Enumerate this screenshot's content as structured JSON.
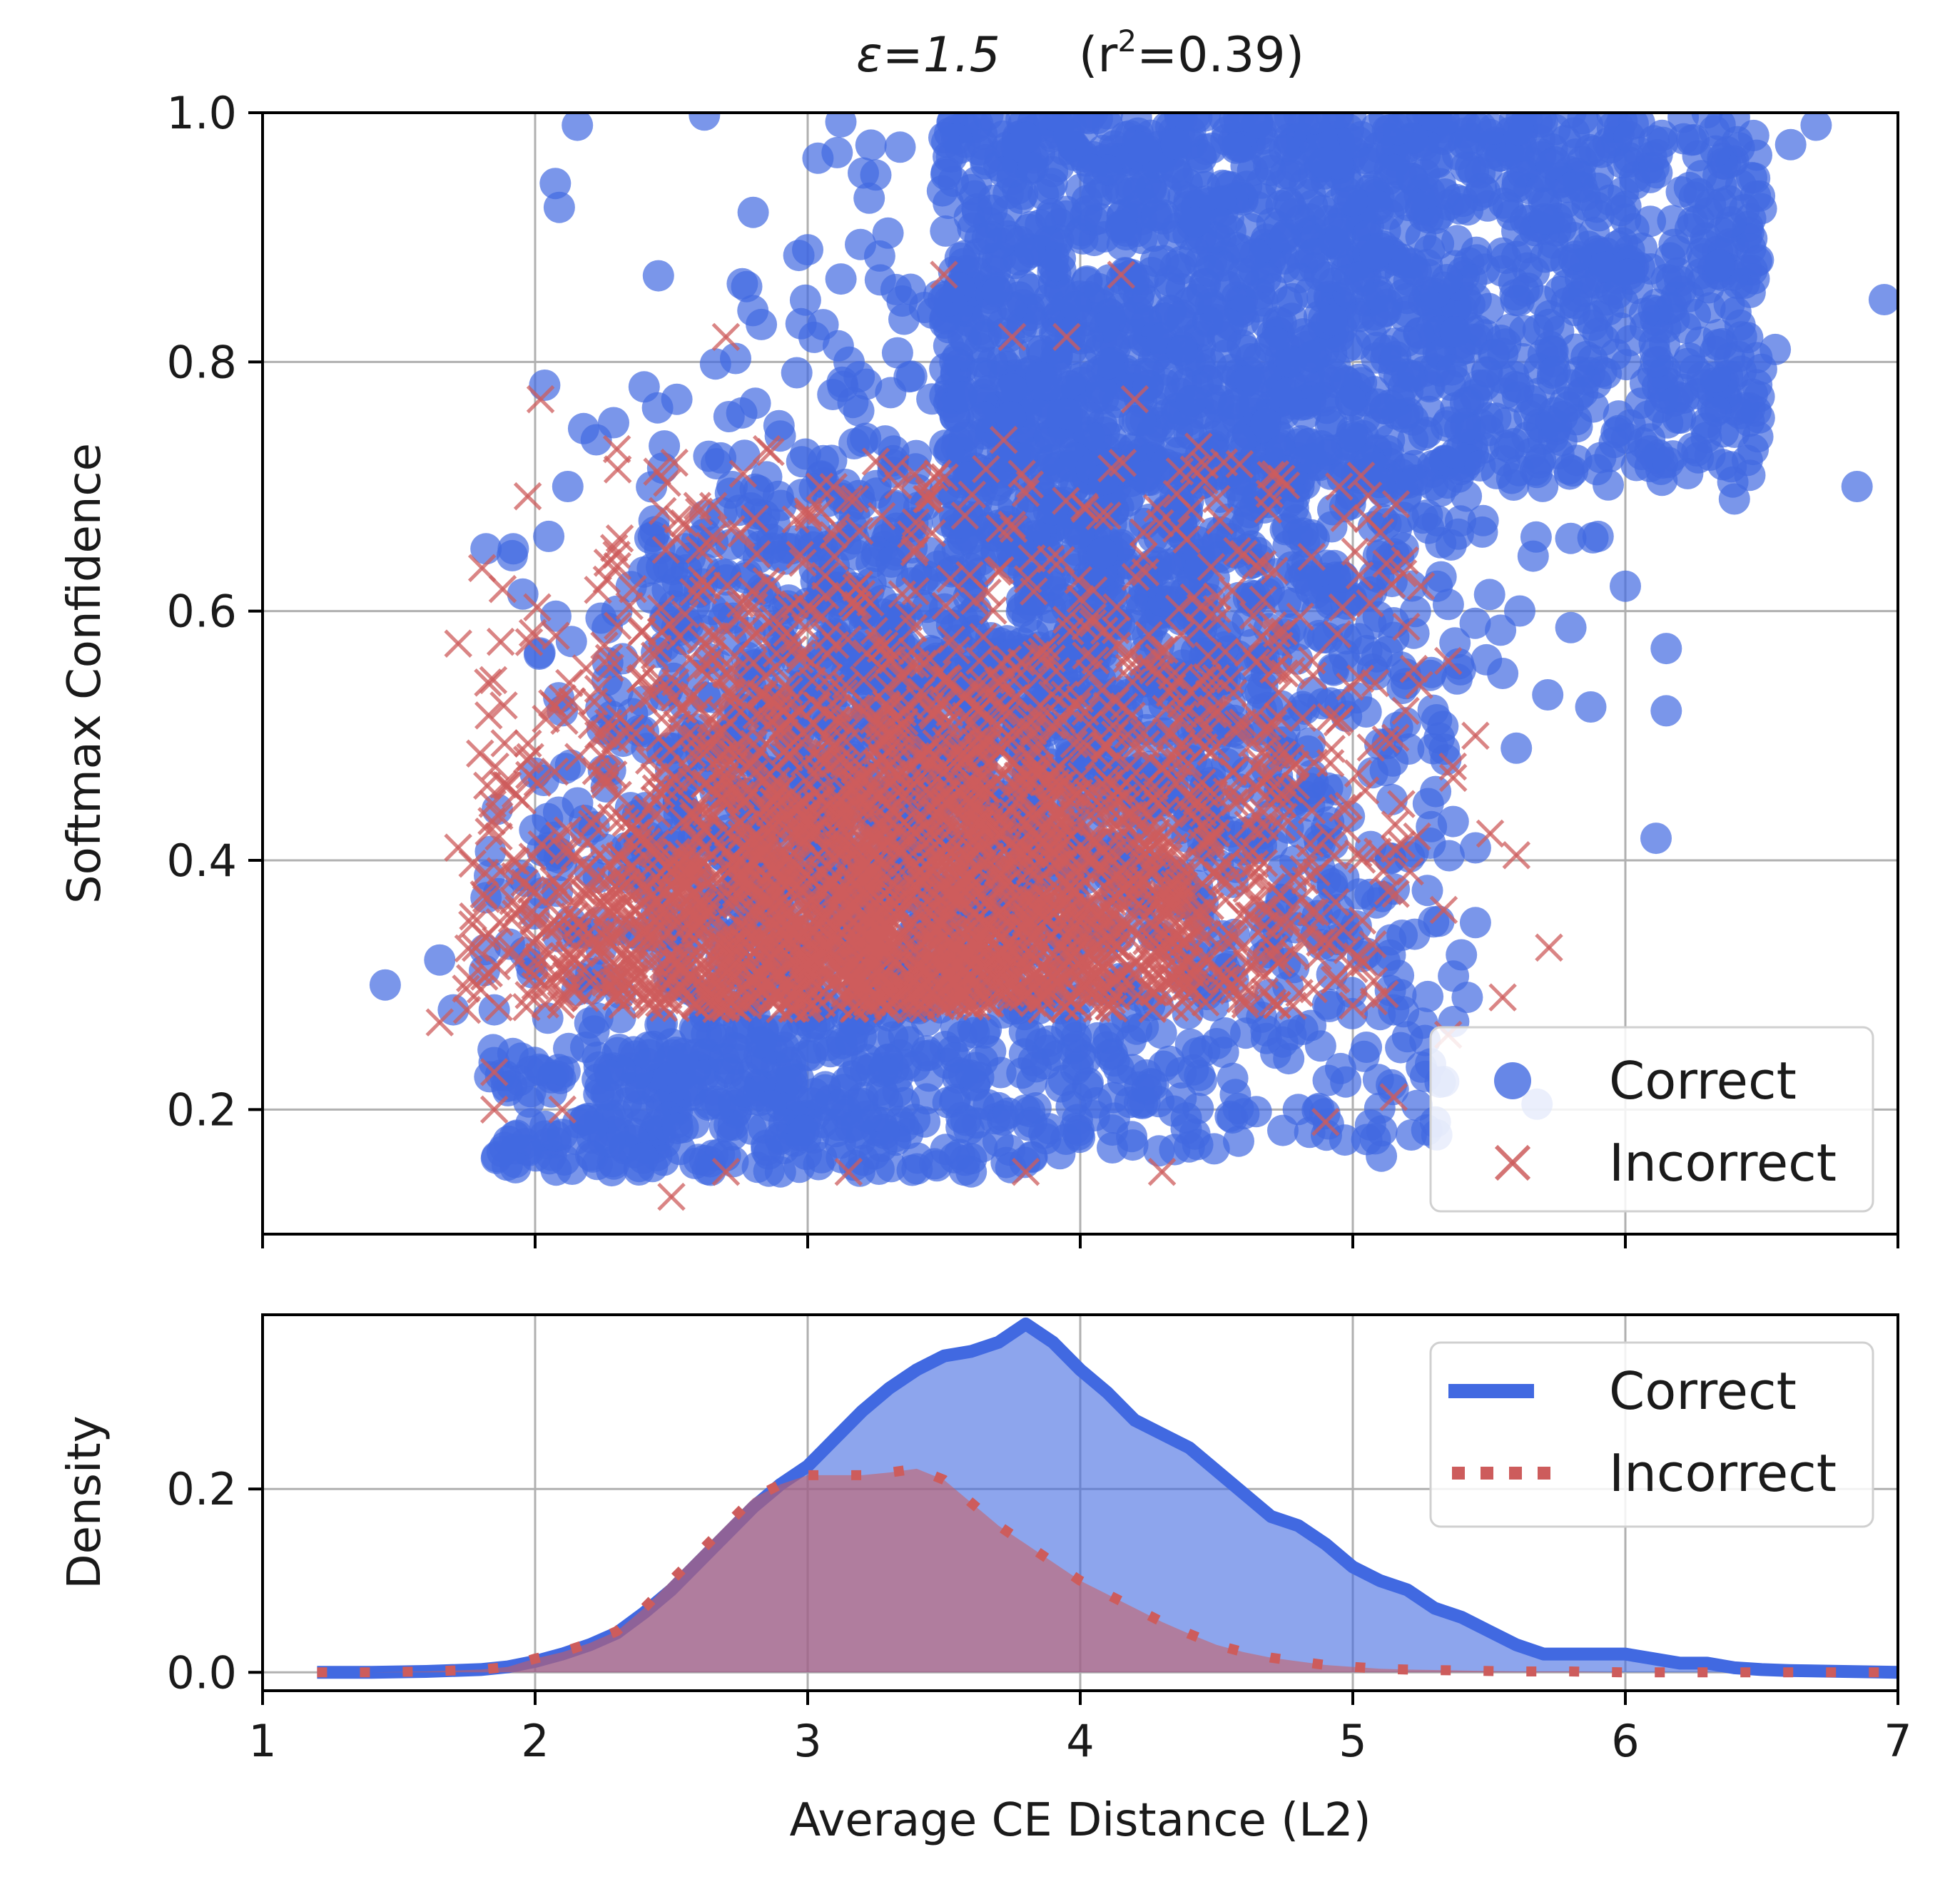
{
  "chart_data": [
    {
      "type": "scatter",
      "title": "ε=1.5    (r²=0.39)",
      "title_parts": {
        "eps": "ε=1.5",
        "r2_open": "(r",
        "r2_sup": "2",
        "r2_value": "=0.39)"
      },
      "xlabel": "",
      "ylabel": "Softmax Confidence",
      "xlim": [
        1,
        7
      ],
      "ylim": [
        0.1,
        1.0
      ],
      "yticks": [
        0.2,
        0.4,
        0.6,
        0.8,
        1.0
      ],
      "ytick_labels": [
        "0.2",
        "0.4",
        "0.6",
        "0.8",
        "1.0"
      ],
      "grid": true,
      "legend": {
        "position": "lower-right",
        "entries": [
          "Correct",
          "Incorrect"
        ]
      },
      "series": [
        {
          "name": "Correct",
          "marker": "circle",
          "color": "#4169e1",
          "sample_points": [
            [
              1.45,
              0.3
            ],
            [
              1.65,
              0.32
            ],
            [
              1.82,
              0.65
            ],
            [
              1.92,
              0.65
            ],
            [
              2.05,
              0.66
            ],
            [
              2.12,
              0.7
            ],
            [
              2.4,
              0.78
            ],
            [
              2.52,
              0.77
            ],
            [
              2.8,
              0.92
            ],
            [
              2.83,
              0.83
            ],
            [
              3.0,
              0.89
            ],
            [
              3.25,
              0.95
            ],
            [
              3.5,
              0.98
            ],
            [
              3.8,
              0.98
            ],
            [
              4.1,
              0.99
            ],
            [
              4.6,
              1.0
            ],
            [
              5.2,
              1.0
            ],
            [
              5.8,
              1.0
            ],
            [
              6.3,
              1.0
            ],
            [
              6.7,
              0.99
            ],
            [
              6.95,
              0.85
            ],
            [
              6.85,
              0.7
            ],
            [
              6.55,
              0.81
            ],
            [
              6.4,
              0.69
            ],
            [
              6.15,
              0.57
            ],
            [
              6.15,
              0.52
            ],
            [
              6.0,
              0.62
            ],
            [
              5.9,
              0.66
            ],
            [
              5.55,
              0.55
            ],
            [
              5.6,
              0.49
            ],
            [
              5.45,
              0.41
            ],
            [
              5.45,
              0.35
            ],
            [
              5.42,
              0.29
            ],
            [
              5.15,
              0.28
            ],
            [
              5.05,
              0.25
            ],
            [
              4.8,
              0.2
            ],
            [
              4.4,
              0.17
            ],
            [
              3.6,
              0.15
            ],
            [
              2.9,
              0.15
            ],
            [
              2.6,
              0.16
            ],
            [
              2.1,
              0.18
            ],
            [
              1.82,
              0.37
            ],
            [
              2.0,
              0.47
            ],
            [
              2.1,
              0.52
            ],
            [
              2.3,
              0.6
            ],
            [
              2.55,
              0.65
            ],
            [
              1.85,
              0.28
            ],
            [
              1.7,
              0.28
            ]
          ]
        },
        {
          "name": "Incorrect",
          "marker": "x",
          "color": "#cd5c5c",
          "sample_points": [
            [
              1.65,
              0.27
            ],
            [
              1.75,
              0.28
            ],
            [
              1.85,
              0.23
            ],
            [
              1.9,
              0.46
            ],
            [
              1.92,
              0.4
            ],
            [
              2.02,
              0.77
            ],
            [
              2.1,
              0.53
            ],
            [
              2.3,
              0.73
            ],
            [
              2.45,
              0.57
            ],
            [
              2.5,
              0.13
            ],
            [
              2.65,
              0.58
            ],
            [
              2.7,
              0.82
            ],
            [
              2.85,
              0.73
            ],
            [
              3.0,
              0.68
            ],
            [
              3.25,
              0.72
            ],
            [
              3.5,
              0.87
            ],
            [
              3.75,
              0.82
            ],
            [
              3.95,
              0.82
            ],
            [
              4.15,
              0.87
            ],
            [
              4.2,
              0.77
            ],
            [
              4.5,
              0.69
            ],
            [
              4.95,
              0.7
            ],
            [
              5.25,
              0.62
            ],
            [
              5.35,
              0.56
            ],
            [
              5.45,
              0.5
            ],
            [
              5.55,
              0.29
            ],
            [
              5.72,
              0.33
            ],
            [
              5.35,
              0.26
            ],
            [
              5.15,
              0.21
            ],
            [
              4.9,
              0.19
            ],
            [
              4.3,
              0.15
            ],
            [
              3.8,
              0.15
            ],
            [
              3.15,
              0.15
            ],
            [
              2.7,
              0.15
            ],
            [
              2.1,
              0.2
            ],
            [
              1.85,
              0.2
            ],
            [
              4.75,
              0.55
            ],
            [
              4.85,
              0.44
            ]
          ]
        }
      ]
    },
    {
      "type": "area",
      "xlabel": "Average CE Distance (L2)",
      "ylabel": "Density",
      "xlim": [
        1,
        7
      ],
      "ylim": [
        -0.02,
        0.39
      ],
      "xticks": [
        1,
        2,
        3,
        4,
        5,
        6,
        7
      ],
      "xtick_labels": [
        "1",
        "2",
        "3",
        "4",
        "5",
        "6",
        "7"
      ],
      "yticks": [
        0.0,
        0.2
      ],
      "ytick_labels": [
        "0.0",
        "0.2"
      ],
      "grid": true,
      "legend": {
        "position": "top-right",
        "entries": [
          "Correct",
          "Incorrect"
        ]
      },
      "series": [
        {
          "name": "Correct",
          "style": "solid",
          "color": "#4169e1",
          "x": [
            1.2,
            1.4,
            1.6,
            1.8,
            1.9,
            2.0,
            2.1,
            2.2,
            2.3,
            2.4,
            2.5,
            2.6,
            2.7,
            2.8,
            2.9,
            3.0,
            3.1,
            3.2,
            3.3,
            3.4,
            3.5,
            3.6,
            3.7,
            3.8,
            3.9,
            4.0,
            4.1,
            4.2,
            4.3,
            4.4,
            4.5,
            4.6,
            4.7,
            4.8,
            4.9,
            5.0,
            5.1,
            5.2,
            5.3,
            5.4,
            5.5,
            5.6,
            5.7,
            5.8,
            5.9,
            6.0,
            6.1,
            6.2,
            6.3,
            6.4,
            6.5,
            6.6,
            6.8,
            7.0
          ],
          "y": [
            0.0,
            0.0,
            0.001,
            0.003,
            0.006,
            0.012,
            0.02,
            0.03,
            0.043,
            0.065,
            0.09,
            0.12,
            0.15,
            0.18,
            0.205,
            0.225,
            0.255,
            0.285,
            0.31,
            0.33,
            0.345,
            0.35,
            0.36,
            0.38,
            0.36,
            0.33,
            0.305,
            0.275,
            0.26,
            0.245,
            0.22,
            0.195,
            0.17,
            0.16,
            0.14,
            0.115,
            0.1,
            0.09,
            0.07,
            0.06,
            0.045,
            0.03,
            0.02,
            0.02,
            0.02,
            0.02,
            0.015,
            0.01,
            0.01,
            0.005,
            0.003,
            0.002,
            0.001,
            0.0
          ]
        },
        {
          "name": "Incorrect",
          "style": "dotted",
          "color": "#cd5c5c",
          "x": [
            1.2,
            1.4,
            1.6,
            1.8,
            1.9,
            2.0,
            2.1,
            2.2,
            2.3,
            2.4,
            2.5,
            2.6,
            2.7,
            2.8,
            2.9,
            3.0,
            3.1,
            3.2,
            3.3,
            3.4,
            3.5,
            3.6,
            3.7,
            3.8,
            3.9,
            4.0,
            4.1,
            4.2,
            4.3,
            4.4,
            4.5,
            4.6,
            4.7,
            4.8,
            4.9,
            5.0,
            5.1,
            5.2,
            5.4,
            5.6,
            5.8,
            6.0,
            6.2,
            6.4,
            6.6,
            6.8,
            7.0
          ],
          "y": [
            0.0,
            0.0,
            0.001,
            0.003,
            0.006,
            0.015,
            0.022,
            0.032,
            0.045,
            0.07,
            0.1,
            0.13,
            0.16,
            0.19,
            0.205,
            0.215,
            0.215,
            0.215,
            0.218,
            0.222,
            0.21,
            0.185,
            0.16,
            0.14,
            0.12,
            0.1,
            0.085,
            0.07,
            0.055,
            0.042,
            0.03,
            0.022,
            0.016,
            0.012,
            0.008,
            0.006,
            0.004,
            0.003,
            0.002,
            0.001,
            0.001,
            0.0,
            0.0,
            0.0,
            0.0,
            0.0,
            0.0
          ]
        }
      ]
    }
  ]
}
